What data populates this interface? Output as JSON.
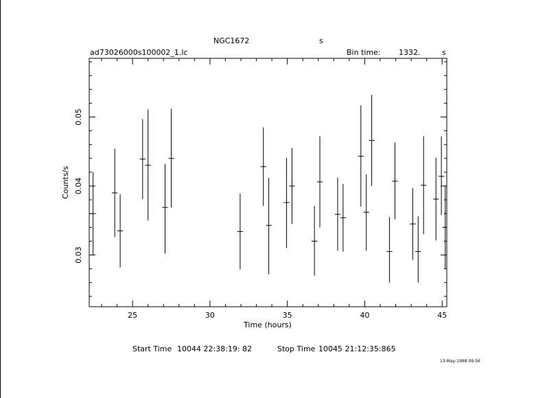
{
  "header": {
    "object": "NGC1672",
    "object_unit": "s",
    "filename": "ad73026000s100002_1.lc",
    "bin_label": "Bin time:",
    "bin_value": "1332.",
    "bin_unit": "s"
  },
  "footer": {
    "start_label": "Start Time",
    "start_value": "10044 22:38:19: 82",
    "stop_label": "Stop Time",
    "stop_value": "10045 21:12:35:865",
    "datestamp": "13-May-1998 09:56"
  },
  "colors": {
    "ink": "#000000",
    "background": "#ffffff"
  },
  "chart_data": {
    "type": "scatter",
    "xlabel": "Time (hours)",
    "ylabel": "Counts/s",
    "xlim": [
      22.2,
      45.3
    ],
    "ylim": [
      0.0225,
      0.0585
    ],
    "xticks": [
      25,
      30,
      35,
      40,
      45
    ],
    "yticks": [
      0.03,
      0.04,
      0.05
    ],
    "xtick_labels": [
      "25",
      "30",
      "35",
      "40",
      "45"
    ],
    "ytick_labels": [
      "0.03",
      "0.04",
      "0.05"
    ],
    "grid": false,
    "legend": "none",
    "series": [
      {
        "points": [
          {
            "x": 22.45,
            "y": 0.036,
            "lo": 0.03,
            "hi": 0.042
          },
          {
            "x": 23.85,
            "y": 0.039,
            "lo": 0.0326,
            "hi": 0.0454
          },
          {
            "x": 24.2,
            "y": 0.0335,
            "lo": 0.0282,
            "hi": 0.0388
          },
          {
            "x": 25.65,
            "y": 0.0439,
            "lo": 0.0381,
            "hi": 0.0497
          },
          {
            "x": 26.0,
            "y": 0.043,
            "lo": 0.035,
            "hi": 0.0511
          },
          {
            "x": 27.1,
            "y": 0.0369,
            "lo": 0.0302,
            "hi": 0.0432
          },
          {
            "x": 27.5,
            "y": 0.044,
            "lo": 0.0369,
            "hi": 0.0512
          },
          {
            "x": 31.95,
            "y": 0.0334,
            "lo": 0.0279,
            "hi": 0.0389
          },
          {
            "x": 33.45,
            "y": 0.0428,
            "lo": 0.0371,
            "hi": 0.0485
          },
          {
            "x": 33.8,
            "y": 0.0343,
            "lo": 0.0272,
            "hi": 0.0412
          },
          {
            "x": 34.95,
            "y": 0.0376,
            "lo": 0.031,
            "hi": 0.0441
          },
          {
            "x": 35.3,
            "y": 0.04,
            "lo": 0.0345,
            "hi": 0.0455
          },
          {
            "x": 36.75,
            "y": 0.032,
            "lo": 0.027,
            "hi": 0.0371
          },
          {
            "x": 37.1,
            "y": 0.0406,
            "lo": 0.034,
            "hi": 0.0472
          },
          {
            "x": 38.25,
            "y": 0.0359,
            "lo": 0.0306,
            "hi": 0.0412
          },
          {
            "x": 38.6,
            "y": 0.0354,
            "lo": 0.0305,
            "hi": 0.0403
          },
          {
            "x": 39.75,
            "y": 0.0443,
            "lo": 0.037,
            "hi": 0.0517
          },
          {
            "x": 40.1,
            "y": 0.0362,
            "lo": 0.0306,
            "hi": 0.0417
          },
          {
            "x": 40.45,
            "y": 0.0466,
            "lo": 0.04,
            "hi": 0.0532
          },
          {
            "x": 41.6,
            "y": 0.0305,
            "lo": 0.026,
            "hi": 0.0355
          },
          {
            "x": 41.95,
            "y": 0.0407,
            "lo": 0.0352,
            "hi": 0.0463
          },
          {
            "x": 43.1,
            "y": 0.0345,
            "lo": 0.0293,
            "hi": 0.0397
          },
          {
            "x": 43.45,
            "y": 0.0305,
            "lo": 0.026,
            "hi": 0.0356
          },
          {
            "x": 43.8,
            "y": 0.0401,
            "lo": 0.033,
            "hi": 0.0472
          },
          {
            "x": 44.6,
            "y": 0.0381,
            "lo": 0.0321,
            "hi": 0.0441
          },
          {
            "x": 44.95,
            "y": 0.0414,
            "lo": 0.0358,
            "hi": 0.0472
          },
          {
            "x": 45.2,
            "y": 0.034,
            "lo": 0.028,
            "hi": 0.04
          }
        ]
      }
    ]
  }
}
